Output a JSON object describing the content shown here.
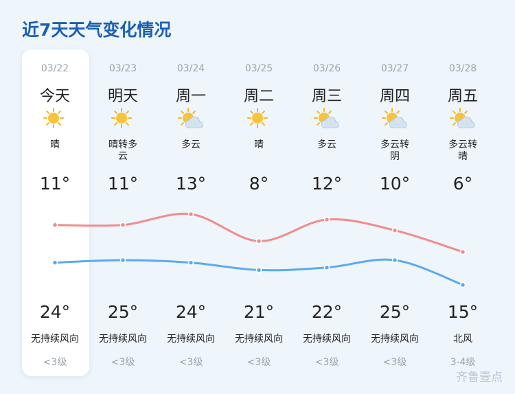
{
  "title": "近7天天气变化情况",
  "days": [
    {
      "date": "03/22",
      "day": "今天",
      "weather": "晴",
      "top_temp": 11,
      "top_label": "11°",
      "bottom_temp": 24,
      "bottom_label": "24°",
      "wind": "无持续风向",
      "level": "<3级"
    },
    {
      "date": "03/23",
      "day": "明天",
      "weather": "晴转多云",
      "top_temp": 11,
      "top_label": "11°",
      "bottom_temp": 25,
      "bottom_label": "25°",
      "wind": "无持续风向",
      "level": "<3级"
    },
    {
      "date": "03/24",
      "day": "周一",
      "weather": "多云",
      "top_temp": 13,
      "top_label": "13°",
      "bottom_temp": 24,
      "bottom_label": "24°",
      "wind": "无持续风向",
      "level": "<3级"
    },
    {
      "date": "03/25",
      "day": "周二",
      "weather": "晴",
      "top_temp": 8,
      "top_label": "8°",
      "bottom_temp": 21,
      "bottom_label": "21°",
      "wind": "无持续风向",
      "level": "<3级"
    },
    {
      "date": "03/26",
      "day": "周三",
      "weather": "多云",
      "top_temp": 12,
      "top_label": "12°",
      "bottom_temp": 22,
      "bottom_label": "22°",
      "wind": "无持续风向",
      "level": "<3级"
    },
    {
      "date": "03/27",
      "day": "周四",
      "weather": "多云转阴",
      "top_temp": 10,
      "top_label": "10°",
      "bottom_temp": 25,
      "bottom_label": "25°",
      "wind": "无持续风向",
      "level": "<3级"
    },
    {
      "date": "03/28",
      "day": "周五",
      "weather": "多云转晴",
      "top_temp": 6,
      "top_label": "6°",
      "bottom_temp": 15,
      "bottom_label": "15°",
      "wind": "北风",
      "level": "3-4级"
    }
  ],
  "watermark": "齐鲁壹点"
}
